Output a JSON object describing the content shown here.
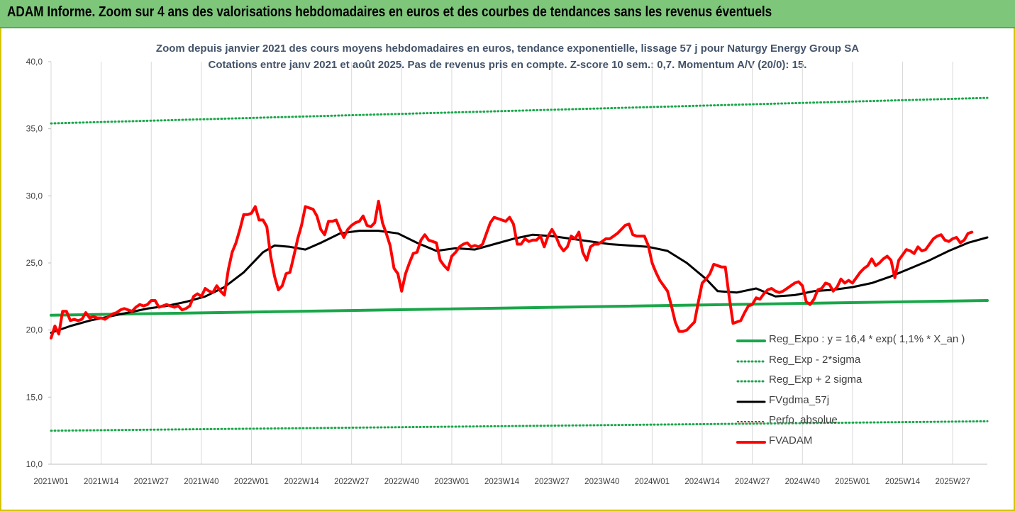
{
  "banner": {
    "title": "ADAM Informe. Zoom sur 4 ans des valorisations hebdomadaires en euros et des courbes de tendances sans les revenus éventuels"
  },
  "colors": {
    "banner_bg": "#7dc67a",
    "reg_expo": "#1aa64a",
    "reg_bands": "#1aa64a",
    "fvgdma": "#000000",
    "perfo": "#c00000",
    "fvadam": "#ff0000",
    "grid": "#d9d9d9"
  },
  "chart_data": {
    "type": "line",
    "title": "Zoom depuis janvier 2021 des cours moyens hebdomadaires en euros, tendance exponentielle, lissage 57 j pour Naturgy Energy Group SA",
    "subtitle": "Cotations entre janv 2021 et août 2025. Pas de revenus pris en compte. Z-score 10 sem.: 0,7. Momentum A/V (20/0): 15.",
    "ylim": [
      10,
      40
    ],
    "y_ticks": [
      "10,0",
      "15,0",
      "20,0",
      "25,0",
      "30,0",
      "35,0",
      "40,0"
    ],
    "x_ticks": [
      "2021W01",
      "2021W14",
      "2021W27",
      "2021W40",
      "2022W01",
      "2022W14",
      "2022W27",
      "2022W40",
      "2023W01",
      "2023W14",
      "2023W27",
      "2023W40",
      "2024W01",
      "2024W14",
      "2024W27",
      "2024W40",
      "2025W01",
      "2025W14",
      "2025W27"
    ],
    "x_range_weeks": [
      0,
      243
    ],
    "grid": "vertical",
    "legend_position": "bottom-right",
    "series": [
      {
        "name": "Reg_Expo : y = 16,4 * exp( 1,1% *  X_an )",
        "style": "solid",
        "points": [
          [
            0,
            21.1
          ],
          [
            243,
            22.2
          ]
        ]
      },
      {
        "name": "Reg_Exp - 2*sigma",
        "style": "dotted",
        "points": [
          [
            0,
            12.5
          ],
          [
            243,
            13.2
          ]
        ]
      },
      {
        "name": "Reg_Exp + 2 sigma",
        "style": "dotted",
        "points": [
          [
            0,
            35.4
          ],
          [
            243,
            37.3
          ]
        ]
      },
      {
        "name": "FVgdma_57j",
        "style": "solid",
        "points": [
          [
            0,
            19.8
          ],
          [
            5,
            20.3
          ],
          [
            10,
            20.7
          ],
          [
            15,
            21.0
          ],
          [
            20,
            21.3
          ],
          [
            25,
            21.6
          ],
          [
            30,
            21.8
          ],
          [
            35,
            22.1
          ],
          [
            40,
            22.5
          ],
          [
            45,
            23.2
          ],
          [
            50,
            24.3
          ],
          [
            55,
            25.8
          ],
          [
            58,
            26.3
          ],
          [
            62,
            26.2
          ],
          [
            66,
            26.0
          ],
          [
            70,
            26.5
          ],
          [
            75,
            27.2
          ],
          [
            80,
            27.4
          ],
          [
            85,
            27.4
          ],
          [
            90,
            27.2
          ],
          [
            95,
            26.5
          ],
          [
            100,
            25.9
          ],
          [
            105,
            26.1
          ],
          [
            110,
            26.0
          ],
          [
            115,
            26.4
          ],
          [
            120,
            26.8
          ],
          [
            125,
            27.1
          ],
          [
            130,
            27.0
          ],
          [
            135,
            26.8
          ],
          [
            140,
            26.6
          ],
          [
            145,
            26.4
          ],
          [
            150,
            26.3
          ],
          [
            155,
            26.2
          ],
          [
            160,
            25.9
          ],
          [
            165,
            25.0
          ],
          [
            170,
            23.8
          ],
          [
            173,
            22.9
          ],
          [
            178,
            22.8
          ],
          [
            183,
            23.1
          ],
          [
            188,
            22.5
          ],
          [
            193,
            22.6
          ],
          [
            198,
            22.9
          ],
          [
            203,
            23.0
          ],
          [
            208,
            23.2
          ],
          [
            213,
            23.5
          ],
          [
            218,
            24.0
          ],
          [
            223,
            24.6
          ],
          [
            228,
            25.2
          ],
          [
            233,
            25.9
          ],
          [
            238,
            26.5
          ],
          [
            243,
            26.9
          ]
        ]
      },
      {
        "name": "Perfo. absolue",
        "style": "dotted",
        "points": []
      },
      {
        "name": "FVADAM",
        "style": "solid-thick",
        "points": [
          [
            0,
            19.4
          ],
          [
            1,
            20.3
          ],
          [
            2,
            19.7
          ],
          [
            3,
            21.4
          ],
          [
            4,
            21.4
          ],
          [
            5,
            20.7
          ],
          [
            6,
            20.8
          ],
          [
            7,
            20.7
          ],
          [
            8,
            20.8
          ],
          [
            9,
            21.3
          ],
          [
            10,
            20.9
          ],
          [
            11,
            21.0
          ],
          [
            12,
            20.9
          ],
          [
            13,
            20.9
          ],
          [
            14,
            20.8
          ],
          [
            15,
            21.0
          ],
          [
            16,
            21.2
          ],
          [
            17,
            21.3
          ],
          [
            18,
            21.5
          ],
          [
            19,
            21.6
          ],
          [
            20,
            21.5
          ],
          [
            21,
            21.4
          ],
          [
            22,
            21.7
          ],
          [
            23,
            21.9
          ],
          [
            24,
            21.8
          ],
          [
            25,
            21.9
          ],
          [
            26,
            22.2
          ],
          [
            27,
            22.2
          ],
          [
            28,
            21.7
          ],
          [
            29,
            21.8
          ],
          [
            30,
            21.9
          ],
          [
            31,
            21.8
          ],
          [
            32,
            21.7
          ],
          [
            33,
            21.8
          ],
          [
            34,
            21.5
          ],
          [
            35,
            21.6
          ],
          [
            36,
            21.8
          ],
          [
            37,
            22.5
          ],
          [
            38,
            22.7
          ],
          [
            39,
            22.5
          ],
          [
            40,
            23.1
          ],
          [
            41,
            22.9
          ],
          [
            42,
            22.8
          ],
          [
            43,
            23.3
          ],
          [
            44,
            22.9
          ],
          [
            45,
            22.6
          ],
          [
            46,
            24.5
          ],
          [
            47,
            25.8
          ],
          [
            48,
            26.5
          ],
          [
            49,
            27.5
          ],
          [
            50,
            28.6
          ],
          [
            51,
            28.6
          ],
          [
            52,
            28.7
          ],
          [
            53,
            29.2
          ],
          [
            54,
            28.2
          ],
          [
            55,
            28.2
          ],
          [
            56,
            27.7
          ],
          [
            57,
            25.5
          ],
          [
            58,
            24.0
          ],
          [
            59,
            23.0
          ],
          [
            60,
            23.3
          ],
          [
            61,
            24.2
          ],
          [
            62,
            24.3
          ],
          [
            63,
            25.5
          ],
          [
            64,
            26.8
          ],
          [
            65,
            27.8
          ],
          [
            66,
            29.2
          ],
          [
            67,
            29.1
          ],
          [
            68,
            29.0
          ],
          [
            69,
            28.5
          ],
          [
            70,
            27.5
          ],
          [
            71,
            27.1
          ],
          [
            72,
            28.1
          ],
          [
            73,
            28.1
          ],
          [
            74,
            28.2
          ],
          [
            75,
            27.5
          ],
          [
            76,
            26.9
          ],
          [
            77,
            27.5
          ],
          [
            78,
            27.8
          ],
          [
            79,
            28.0
          ],
          [
            80,
            28.1
          ],
          [
            81,
            28.5
          ],
          [
            82,
            27.8
          ],
          [
            83,
            27.7
          ],
          [
            84,
            28.0
          ],
          [
            85,
            29.6
          ],
          [
            86,
            28.0
          ],
          [
            87,
            27.2
          ],
          [
            88,
            26.3
          ],
          [
            89,
            24.6
          ],
          [
            90,
            24.2
          ],
          [
            91,
            22.9
          ],
          [
            92,
            24.2
          ],
          [
            93,
            25.0
          ],
          [
            94,
            25.7
          ],
          [
            95,
            25.8
          ],
          [
            96,
            26.7
          ],
          [
            97,
            27.1
          ],
          [
            98,
            26.7
          ],
          [
            99,
            26.6
          ],
          [
            100,
            26.5
          ],
          [
            101,
            25.2
          ],
          [
            102,
            24.8
          ],
          [
            103,
            24.5
          ],
          [
            104,
            25.5
          ],
          [
            105,
            25.8
          ],
          [
            106,
            26.2
          ],
          [
            107,
            26.4
          ],
          [
            108,
            26.5
          ],
          [
            109,
            26.2
          ],
          [
            110,
            26.3
          ],
          [
            111,
            26.2
          ],
          [
            112,
            26.4
          ],
          [
            113,
            27.2
          ],
          [
            114,
            28.0
          ],
          [
            115,
            28.4
          ],
          [
            116,
            28.3
          ],
          [
            117,
            28.2
          ],
          [
            118,
            28.1
          ],
          [
            119,
            28.4
          ],
          [
            120,
            27.9
          ],
          [
            121,
            26.4
          ],
          [
            122,
            26.4
          ],
          [
            123,
            26.8
          ],
          [
            124,
            26.6
          ],
          [
            125,
            26.7
          ],
          [
            126,
            26.7
          ],
          [
            127,
            27.0
          ],
          [
            128,
            26.2
          ],
          [
            129,
            27.0
          ],
          [
            130,
            27.5
          ],
          [
            131,
            27.0
          ],
          [
            132,
            26.3
          ],
          [
            133,
            25.9
          ],
          [
            134,
            26.2
          ],
          [
            135,
            27.0
          ],
          [
            136,
            26.8
          ],
          [
            137,
            27.3
          ],
          [
            138,
            25.8
          ],
          [
            139,
            25.2
          ],
          [
            140,
            26.2
          ],
          [
            141,
            26.4
          ],
          [
            142,
            26.4
          ],
          [
            143,
            26.6
          ],
          [
            144,
            26.8
          ],
          [
            145,
            26.8
          ],
          [
            146,
            27.0
          ],
          [
            147,
            27.2
          ],
          [
            148,
            27.5
          ],
          [
            149,
            27.8
          ],
          [
            150,
            27.9
          ],
          [
            151,
            27.1
          ],
          [
            152,
            27.0
          ],
          [
            153,
            27.0
          ],
          [
            154,
            27.0
          ],
          [
            155,
            26.3
          ],
          [
            156,
            25.0
          ],
          [
            157,
            24.3
          ],
          [
            158,
            23.7
          ],
          [
            159,
            23.3
          ],
          [
            160,
            22.9
          ],
          [
            161,
            21.8
          ],
          [
            162,
            20.6
          ],
          [
            163,
            19.9
          ],
          [
            164,
            19.9
          ],
          [
            165,
            20.0
          ],
          [
            166,
            20.3
          ],
          [
            167,
            20.6
          ],
          [
            168,
            22.1
          ],
          [
            169,
            23.5
          ],
          [
            170,
            23.8
          ],
          [
            171,
            24.2
          ],
          [
            172,
            24.9
          ],
          [
            173,
            24.8
          ],
          [
            174,
            24.7
          ],
          [
            175,
            24.7
          ],
          [
            176,
            22.5
          ],
          [
            177,
            20.5
          ],
          [
            178,
            20.6
          ],
          [
            179,
            20.7
          ],
          [
            180,
            21.3
          ],
          [
            181,
            21.8
          ],
          [
            182,
            21.9
          ],
          [
            183,
            22.4
          ],
          [
            184,
            22.3
          ],
          [
            185,
            22.7
          ],
          [
            186,
            23.0
          ],
          [
            187,
            23.1
          ],
          [
            188,
            22.9
          ],
          [
            189,
            22.8
          ],
          [
            190,
            22.9
          ],
          [
            191,
            23.1
          ],
          [
            192,
            23.3
          ],
          [
            193,
            23.5
          ],
          [
            194,
            23.6
          ],
          [
            195,
            23.3
          ],
          [
            196,
            22.1
          ],
          [
            197,
            21.9
          ],
          [
            198,
            22.3
          ],
          [
            199,
            23.0
          ],
          [
            200,
            23.1
          ],
          [
            201,
            23.5
          ],
          [
            202,
            23.4
          ],
          [
            203,
            22.9
          ],
          [
            204,
            23.2
          ],
          [
            205,
            23.8
          ],
          [
            206,
            23.5
          ],
          [
            207,
            23.7
          ],
          [
            208,
            23.5
          ],
          [
            209,
            23.9
          ],
          [
            210,
            24.3
          ],
          [
            211,
            24.6
          ],
          [
            212,
            24.8
          ],
          [
            213,
            25.3
          ],
          [
            214,
            24.8
          ],
          [
            215,
            25.0
          ],
          [
            216,
            25.3
          ],
          [
            217,
            25.5
          ],
          [
            218,
            25.2
          ],
          [
            219,
            23.9
          ],
          [
            220,
            25.2
          ],
          [
            221,
            25.6
          ],
          [
            222,
            26.0
          ],
          [
            223,
            25.9
          ],
          [
            224,
            25.7
          ],
          [
            225,
            26.2
          ],
          [
            226,
            25.9
          ],
          [
            227,
            26.0
          ],
          [
            228,
            26.4
          ],
          [
            229,
            26.8
          ],
          [
            230,
            27.0
          ],
          [
            231,
            27.1
          ],
          [
            232,
            26.7
          ],
          [
            233,
            26.6
          ],
          [
            234,
            26.8
          ],
          [
            235,
            26.9
          ],
          [
            236,
            26.5
          ],
          [
            237,
            26.7
          ],
          [
            238,
            27.2
          ],
          [
            239,
            27.3
          ]
        ]
      }
    ]
  }
}
